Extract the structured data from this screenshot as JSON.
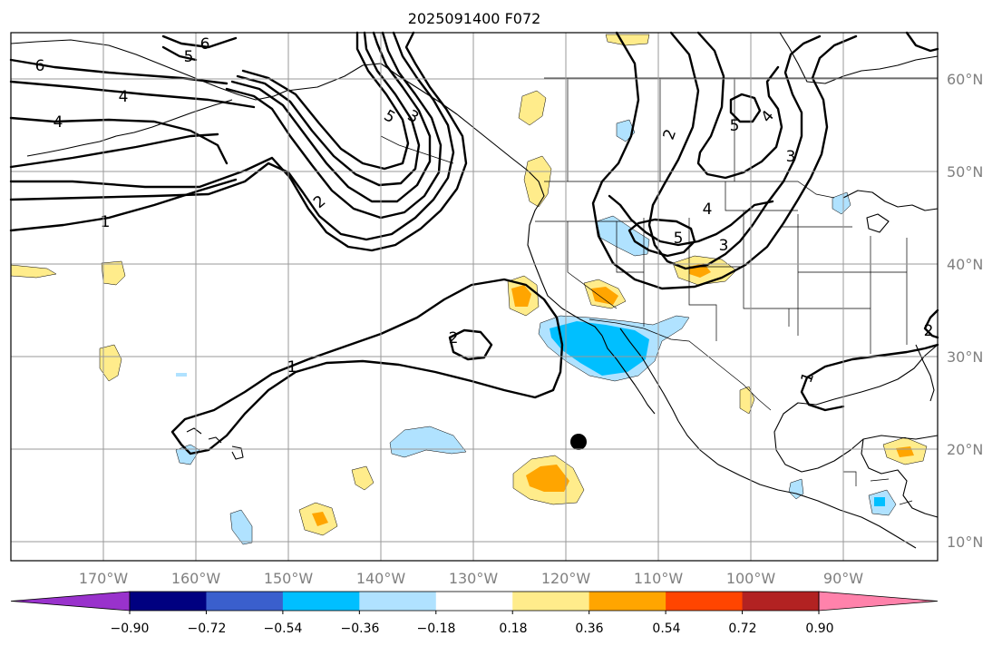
{
  "title": "2025091400 F072",
  "map": {
    "lon_labels": [
      "170°W",
      "160°W",
      "150°W",
      "140°W",
      "130°W",
      "120°W",
      "110°W",
      "100°W",
      "90°W"
    ],
    "lat_labels": [
      "60°N",
      "50°N",
      "40°N",
      "30°N",
      "20°N",
      "10°N"
    ],
    "contour_labels": [
      "6",
      "5",
      "6",
      "4",
      "4",
      "2",
      "1",
      "5",
      "3",
      "2",
      "5",
      "4",
      "5",
      "3",
      "4",
      "3",
      "2",
      "1",
      "2",
      "2",
      "1"
    ]
  },
  "colorbar": {
    "tick_labels": [
      "−0.90",
      "−0.72",
      "−0.54",
      "−0.36",
      "−0.18",
      "0.18",
      "0.36",
      "0.54",
      "0.72",
      "0.90"
    ],
    "colors": [
      "#9932cc",
      "#000080",
      "#3a5fcd",
      "#00bfff",
      "#b0e2ff",
      "#ffffff",
      "#ffec8b",
      "#ffa500",
      "#ff4500",
      "#b22222",
      "#ff82ab"
    ]
  }
}
